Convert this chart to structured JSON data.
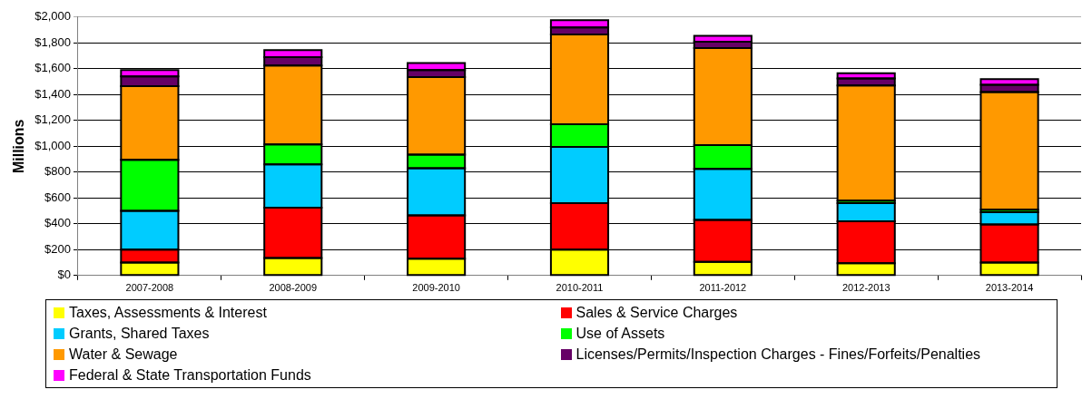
{
  "chart_data": {
    "type": "bar",
    "stacked": true,
    "ylabel": "Millions",
    "categories": [
      "2007-2008",
      "2008-2009",
      "2009-2010",
      "2010-2011",
      "2011-2012",
      "2012-2013",
      "2013-2014"
    ],
    "series": [
      {
        "name": "Taxes, Assessments & Interest",
        "color": "#ffff00",
        "values": [
          100,
          135,
          130,
          200,
          105,
          95,
          100
        ]
      },
      {
        "name": "Sales & Service Charges",
        "color": "#ff0000",
        "values": [
          100,
          390,
          335,
          360,
          325,
          325,
          295
        ]
      },
      {
        "name": "Grants, Shared Taxes",
        "color": "#00ccff",
        "values": [
          300,
          335,
          365,
          435,
          395,
          140,
          95
        ]
      },
      {
        "name": "Use of Assets",
        "color": "#00ff00",
        "values": [
          395,
          155,
          105,
          175,
          185,
          20,
          20
        ]
      },
      {
        "name": "Water & Sewage",
        "color": "#ff9900",
        "values": [
          570,
          610,
          600,
          695,
          750,
          890,
          910
        ]
      },
      {
        "name": "Licenses/Permits/Inspection Charges - Fines/Forfeits/Penalties",
        "color": "#660066",
        "values": [
          75,
          65,
          55,
          55,
          50,
          55,
          55
        ]
      },
      {
        "name": "Federal & State Transportation Funds",
        "color": "#ff00ff",
        "values": [
          50,
          55,
          55,
          55,
          45,
          40,
          45
        ]
      }
    ],
    "ylim": [
      0,
      2000
    ],
    "yticks": [
      {
        "value": 0,
        "label": "$0"
      },
      {
        "value": 200,
        "label": "$200"
      },
      {
        "value": 400,
        "label": "$400"
      },
      {
        "value": 600,
        "label": "$600"
      },
      {
        "value": 800,
        "label": "$800"
      },
      {
        "value": 1000,
        "label": "$1,000"
      },
      {
        "value": 1200,
        "label": "$1,200"
      },
      {
        "value": 1400,
        "label": "$1,400"
      },
      {
        "value": 1600,
        "label": "$1,600"
      },
      {
        "value": 1800,
        "label": "$1,800"
      },
      {
        "value": 2000,
        "label": "$2,000"
      }
    ],
    "grid": "y",
    "legend": "bottom"
  }
}
